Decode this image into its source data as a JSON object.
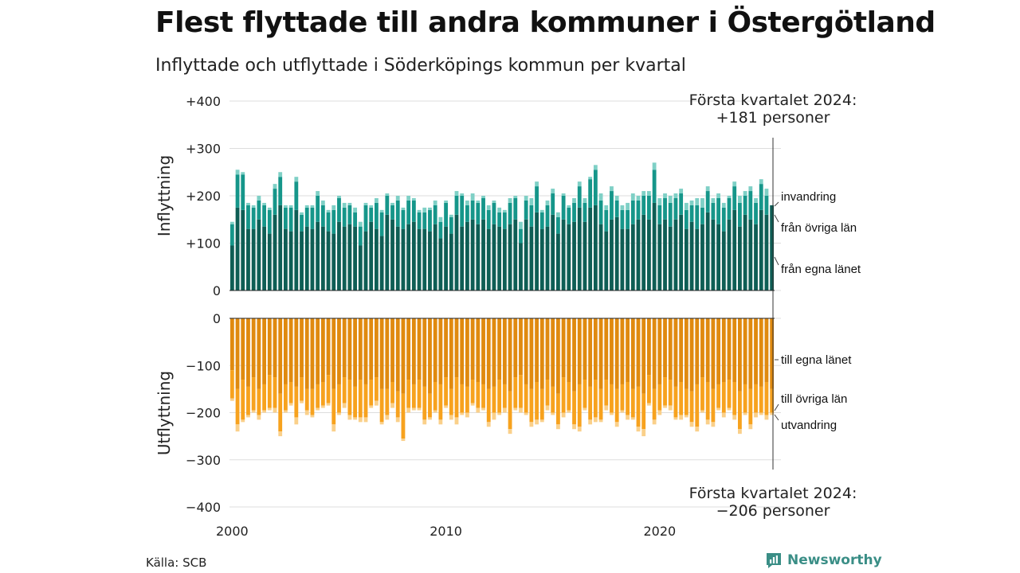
{
  "title": "Flest flyttade till andra kommuner i Östergötland",
  "subtitle": "Inflyttade och utflyttade i Söderköpings kommun per kvartal",
  "source": "Källa: SCB",
  "brand": "Newsworthy",
  "colors": {
    "in_own": "#0e5e55",
    "in_other": "#16968a",
    "in_immig": "#7fd0c6",
    "out_own": "#e08a0f",
    "out_other": "#f7a21e",
    "out_emig": "#fad08a",
    "grid": "#dddddd",
    "brand": "#3a8e86"
  },
  "annotations": {
    "top": [
      "Första kvartalet 2024:",
      "+181 personer"
    ],
    "bottom": [
      "Första kvartalet 2024:",
      "−206 personer"
    ]
  },
  "chart_data": [
    {
      "type": "bar",
      "stacked": true,
      "ylabel": "Inflyttning",
      "ylim": [
        0,
        400
      ],
      "yticks": [
        "0",
        "+100",
        "+200",
        "+300",
        "+400"
      ],
      "x_start": "2000 Q1",
      "x_end": "2024 Q1",
      "xticks": [
        "2000",
        "2010",
        "2020"
      ],
      "series": [
        {
          "name": "från egna länet",
          "values": [
            95,
            175,
            170,
            130,
            130,
            150,
            135,
            120,
            160,
            180,
            130,
            125,
            170,
            125,
            135,
            130,
            145,
            135,
            125,
            120,
            145,
            135,
            140,
            135,
            95,
            125,
            145,
            130,
            115,
            160,
            150,
            135,
            130,
            140,
            145,
            130,
            130,
            125,
            140,
            110,
            135,
            120,
            160,
            135,
            145,
            150,
            140,
            150,
            130,
            140,
            135,
            130,
            140,
            150,
            100,
            150,
            135,
            165,
            130,
            135,
            160,
            120,
            150,
            140,
            145,
            175,
            145,
            175,
            180,
            140,
            125,
            150,
            155,
            130,
            130,
            140,
            150,
            160,
            150,
            185,
            140,
            150,
            135,
            150,
            160,
            130,
            145,
            130,
            140,
            165,
            150,
            140,
            125,
            150,
            170,
            135,
            160,
            150,
            140,
            170,
            160,
            180
          ]
        },
        {
          "name": "från övriga län",
          "values": [
            45,
            70,
            75,
            50,
            45,
            40,
            45,
            50,
            55,
            60,
            45,
            50,
            60,
            35,
            40,
            45,
            55,
            45,
            40,
            50,
            50,
            40,
            40,
            30,
            40,
            55,
            30,
            55,
            50,
            40,
            30,
            55,
            40,
            50,
            45,
            35,
            35,
            45,
            40,
            35,
            50,
            35,
            40,
            65,
            35,
            40,
            45,
            45,
            40,
            45,
            30,
            35,
            45,
            45,
            30,
            40,
            45,
            55,
            35,
            45,
            45,
            35,
            50,
            35,
            40,
            45,
            40,
            60,
            75,
            50,
            45,
            60,
            35,
            40,
            40,
            50,
            40,
            40,
            50,
            70,
            40,
            45,
            50,
            45,
            45,
            40,
            35,
            50,
            35,
            45,
            35,
            55,
            50,
            45,
            50,
            50,
            40,
            60,
            45,
            55,
            40,
            0
          ]
        },
        {
          "name": "invandring",
          "values": [
            5,
            10,
            5,
            5,
            5,
            10,
            5,
            5,
            10,
            10,
            5,
            5,
            10,
            5,
            5,
            5,
            10,
            10,
            5,
            10,
            5,
            10,
            5,
            10,
            10,
            5,
            5,
            10,
            5,
            5,
            5,
            10,
            5,
            10,
            5,
            5,
            10,
            5,
            10,
            10,
            5,
            5,
            10,
            5,
            10,
            15,
            5,
            5,
            10,
            5,
            10,
            5,
            10,
            5,
            15,
            10,
            15,
            10,
            5,
            10,
            10,
            10,
            5,
            5,
            10,
            10,
            10,
            5,
            10,
            15,
            10,
            10,
            10,
            10,
            15,
            15,
            10,
            10,
            10,
            15,
            15,
            10,
            15,
            10,
            10,
            15,
            10,
            15,
            20,
            10,
            10,
            10,
            10,
            5,
            10,
            15,
            10,
            10,
            10,
            10,
            15,
            0
          ]
        }
      ]
    },
    {
      "type": "bar",
      "stacked": true,
      "ylabel": "Utflyttning",
      "ylim": [
        -400,
        0
      ],
      "yticks": [
        "0",
        "−100",
        "−200",
        "−300",
        "−400"
      ],
      "x_start": "2000 Q1",
      "x_end": "2024 Q1",
      "series": [
        {
          "name": "till egna länet",
          "values": [
            -110,
            -150,
            -130,
            -145,
            -125,
            -150,
            -140,
            -120,
            -125,
            -160,
            -140,
            -135,
            -145,
            -125,
            -150,
            -150,
            -140,
            -135,
            -120,
            -150,
            -140,
            -125,
            -130,
            -145,
            -130,
            -140,
            -130,
            -125,
            -150,
            -150,
            -135,
            -155,
            -160,
            -130,
            -140,
            -130,
            -145,
            -160,
            -135,
            -140,
            -125,
            -150,
            -125,
            -140,
            -145,
            -130,
            -135,
            -140,
            -150,
            -145,
            -130,
            -140,
            -155,
            -125,
            -120,
            -140,
            -150,
            -135,
            -150,
            -130,
            -145,
            -160,
            -125,
            -135,
            -155,
            -140,
            -130,
            -145,
            -130,
            -150,
            -130,
            -140,
            -150,
            -140,
            -135,
            -150,
            -145,
            -160,
            -120,
            -150,
            -140,
            -125,
            -130,
            -145,
            -135,
            -150,
            -155,
            -140,
            -125,
            -135,
            -150,
            -140,
            -135,
            -130,
            -135,
            -155,
            -140,
            -150,
            -140,
            -145,
            -135,
            -150
          ]
        },
        {
          "name": "till övriga län",
          "values": [
            -60,
            -75,
            -85,
            -60,
            -70,
            -55,
            -55,
            -70,
            -65,
            -80,
            -55,
            -45,
            -65,
            -50,
            -45,
            -55,
            -50,
            -50,
            -60,
            -75,
            -60,
            -55,
            -75,
            -65,
            -80,
            -70,
            -55,
            -50,
            -70,
            -55,
            -45,
            -55,
            -95,
            -60,
            -50,
            -60,
            -70,
            -50,
            -60,
            -75,
            -60,
            -55,
            -85,
            -60,
            -55,
            -50,
            -55,
            -50,
            -70,
            -55,
            -70,
            -50,
            -80,
            -65,
            -70,
            -60,
            -70,
            -80,
            -65,
            -55,
            -55,
            -65,
            -75,
            -60,
            -70,
            -90,
            -60,
            -70,
            -80,
            -65,
            -55,
            -60,
            -70,
            -55,
            -70,
            -60,
            -85,
            -75,
            -60,
            -65,
            -55,
            -60,
            -55,
            -65,
            -70,
            -55,
            -65,
            -90,
            -70,
            -80,
            -70,
            -50,
            -65,
            -60,
            -70,
            -80,
            -60,
            -75,
            -60,
            -55,
            -70,
            -50
          ]
        },
        {
          "name": "utvandring",
          "values": [
            -5,
            -15,
            -5,
            -5,
            -5,
            -10,
            -5,
            -5,
            -10,
            -10,
            -5,
            -5,
            -15,
            -5,
            -10,
            -5,
            -5,
            -5,
            -5,
            -15,
            -5,
            -10,
            -10,
            -5,
            -10,
            -10,
            -5,
            -10,
            -5,
            -10,
            -10,
            -10,
            -5,
            -10,
            -5,
            -5,
            -10,
            -5,
            -5,
            -10,
            -5,
            -10,
            -15,
            -5,
            -10,
            -5,
            -10,
            -5,
            -10,
            -15,
            -5,
            -10,
            -10,
            -5,
            -10,
            -5,
            -10,
            -10,
            -5,
            -10,
            -5,
            -10,
            -10,
            -5,
            -10,
            -10,
            -5,
            -10,
            -10,
            -5,
            -10,
            -5,
            -10,
            -5,
            -10,
            -5,
            -10,
            -15,
            -5,
            -10,
            -10,
            -5,
            -10,
            -5,
            -10,
            -5,
            -10,
            -10,
            -5,
            -10,
            -10,
            -5,
            -10,
            -5,
            -10,
            -10,
            -5,
            -10,
            -10,
            -5,
            -10,
            -5
          ]
        }
      ]
    }
  ]
}
